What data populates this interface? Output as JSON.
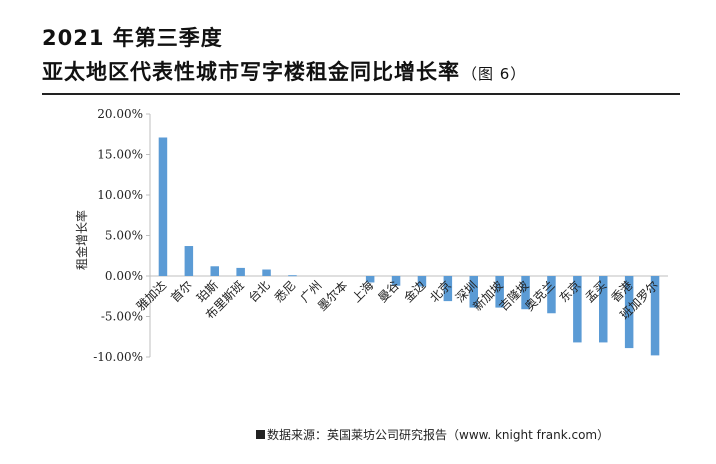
{
  "header": {
    "title_line1": "2021 年第三季度",
    "title_line2": "亚太地区代表性城市写字楼租金同比增长率",
    "figure_note": "（图 6）"
  },
  "source": {
    "text": "数据来源：英国莱坊公司研究报告（www. knight frank.com）"
  },
  "colors": {
    "bar": "#5b9bd5",
    "axis": "#bfbfbf",
    "text": "#222222"
  },
  "chart_data": {
    "type": "bar",
    "title": "2021 年第三季度亚太地区代表性城市写字楼租金同比增长率",
    "xlabel": "",
    "ylabel": "租金增长率",
    "ylim": [
      -10,
      20
    ],
    "yticks": [
      20,
      15,
      10,
      5,
      0,
      -5,
      -10
    ],
    "ytick_labels": [
      "20.00%",
      "15.00%",
      "10.00%",
      "5.00%",
      "0.00%",
      "-5.00%",
      "-10.00%"
    ],
    "categories": [
      "雅加达",
      "首尔",
      "珀斯",
      "布里斯班",
      "台北",
      "悉尼",
      "广州",
      "墨尔本",
      "上海",
      "曼谷",
      "金边",
      "北京",
      "深圳",
      "新加坡",
      "吉隆坡",
      "奥克兰",
      "东京",
      "孟买",
      "香港",
      "班加罗尔"
    ],
    "values": [
      17.1,
      3.7,
      1.2,
      1.0,
      0.8,
      0.1,
      0.0,
      0.0,
      -0.8,
      -1.2,
      -1.3,
      -3.1,
      -3.9,
      -3.9,
      -4.1,
      -4.6,
      -8.2,
      -8.2,
      -8.9,
      -9.8
    ],
    "legend": "none",
    "grid": false
  }
}
